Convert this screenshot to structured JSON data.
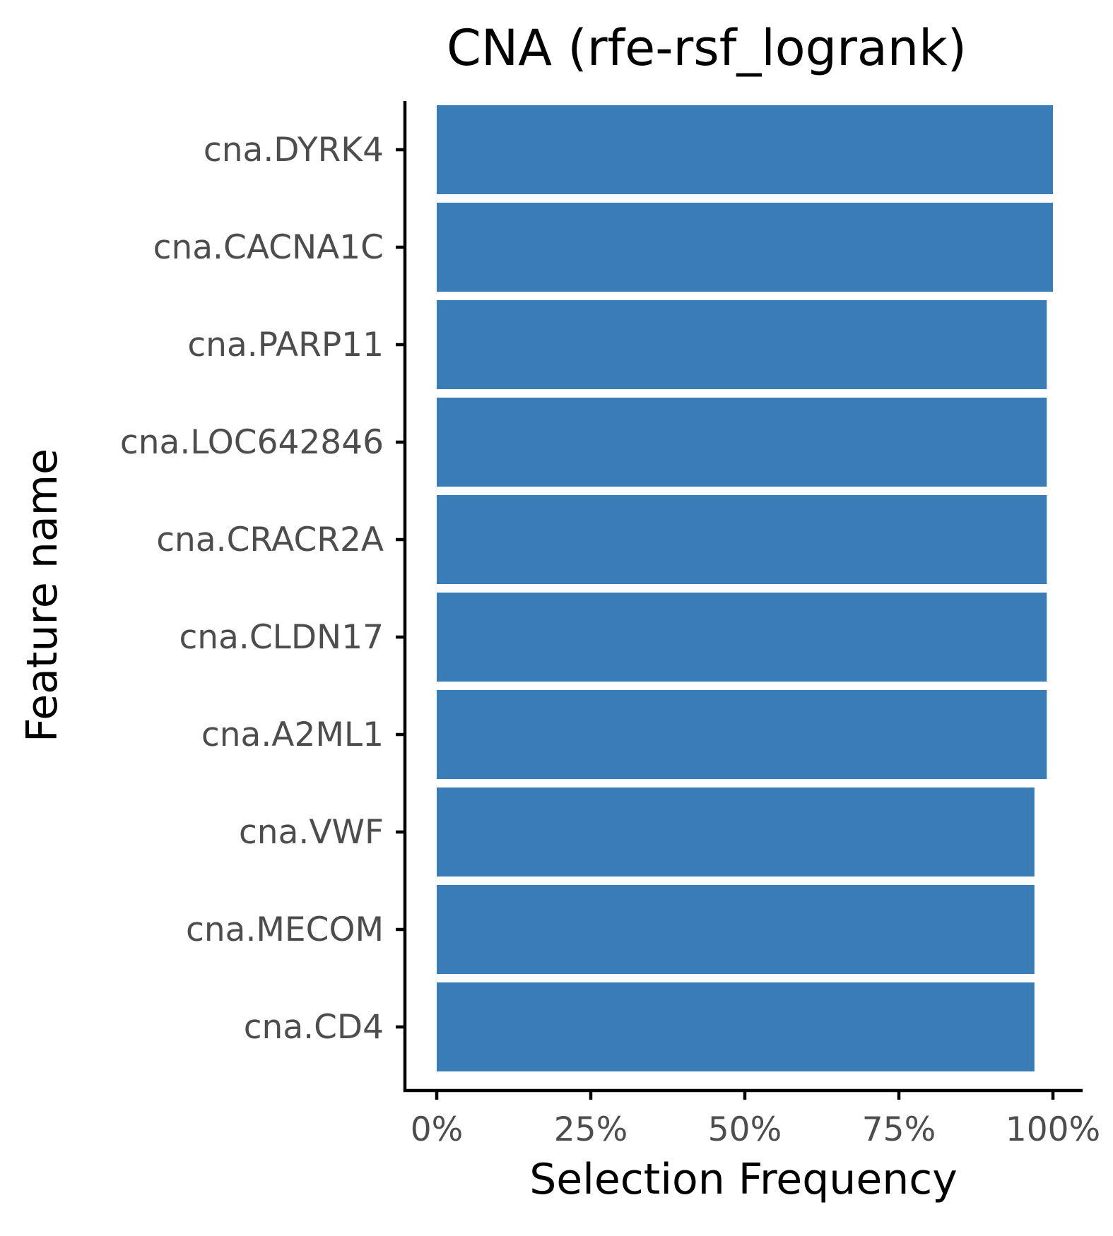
{
  "chart_data": {
    "type": "bar",
    "orientation": "horizontal",
    "title": "CNA (rfe-rsf_logrank)",
    "xlabel": "Selection Frequency",
    "ylabel": "Feature name",
    "categories": [
      "cna.DYRK4",
      "cna.CACNA1C",
      "cna.PARP11",
      "cna.LOC642846",
      "cna.CRACR2A",
      "cna.CLDN17",
      "cna.A2ML1",
      "cna.VWF",
      "cna.MECOM",
      "cna.CD4"
    ],
    "values": [
      1.0,
      1.0,
      0.99,
      0.99,
      0.99,
      0.99,
      0.99,
      0.97,
      0.97,
      0.97
    ],
    "xlim": [
      0,
      1
    ],
    "xticks": [
      0,
      0.25,
      0.5,
      0.75,
      1.0
    ],
    "xtick_labels": [
      "0%",
      "25%",
      "50%",
      "75%",
      "100%"
    ],
    "bar_color": "#3a7db6",
    "grid": false,
    "legend": "none"
  }
}
